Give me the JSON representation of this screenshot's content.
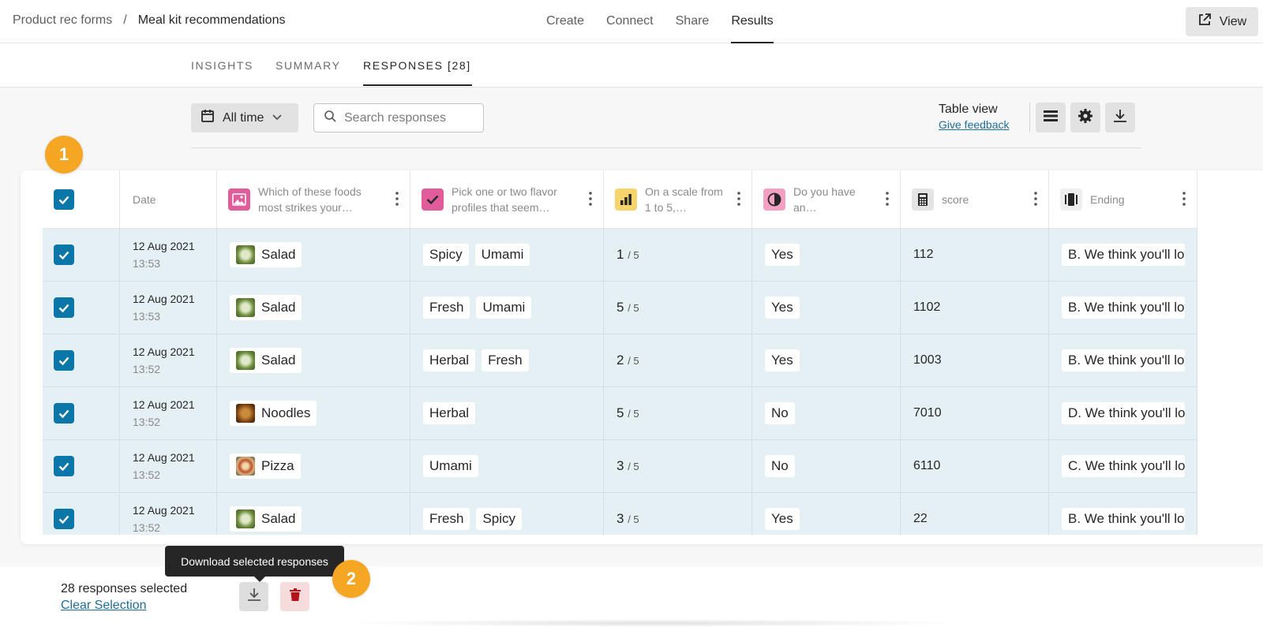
{
  "breadcrumb": {
    "parent": "Product rec forms",
    "separator": "/",
    "current": "Meal kit recommendations"
  },
  "topnav": [
    {
      "label": "Create",
      "active": false
    },
    {
      "label": "Connect",
      "active": false
    },
    {
      "label": "Share",
      "active": false
    },
    {
      "label": "Results",
      "active": true
    }
  ],
  "view_button": {
    "label": "View",
    "icon": "external-link-icon"
  },
  "subtabs": [
    {
      "label": "INSIGHTS",
      "active": false
    },
    {
      "label": "SUMMARY",
      "active": false
    },
    {
      "label": "RESPONSES [28]",
      "active": true
    }
  ],
  "toolbar": {
    "date_filter": "All time",
    "search_placeholder": "Search responses",
    "table_view_title": "Table view",
    "give_feedback": "Give feedback",
    "icons": [
      "rows-icon",
      "gear-icon",
      "download-icon"
    ]
  },
  "badges": [
    "1",
    "2"
  ],
  "table": {
    "headers": {
      "date": "Date",
      "q1": "Which of these foods most strikes your…",
      "q2": "Pick one or two flavor profiles that seem…",
      "q3": "On a scale from 1 to 5,…",
      "q4": "Do you have an…",
      "q5": "score",
      "q6": "Ending"
    },
    "header_colors": {
      "q1": "#e05c9a",
      "q2": "#e05c9a",
      "q3": "#f6d36b",
      "q4": "#f3a0c5",
      "q5": "#e4e4e4",
      "q6": "#e4e4e4"
    },
    "rows": [
      {
        "date": "12 Aug 2021",
        "time": "13:53",
        "food": "Salad",
        "flavors": [
          "Spicy",
          "Umami"
        ],
        "scale": "1",
        "scale_max": "/ 5",
        "yesno": "Yes",
        "score": "112",
        "ending": "B. We think you'll love"
      },
      {
        "date": "12 Aug 2021",
        "time": "13:53",
        "food": "Salad",
        "flavors": [
          "Fresh",
          "Umami"
        ],
        "scale": "5",
        "scale_max": "/ 5",
        "yesno": "Yes",
        "score": "1102",
        "ending": "B. We think you'll love"
      },
      {
        "date": "12 Aug 2021",
        "time": "13:52",
        "food": "Salad",
        "flavors": [
          "Herbal",
          "Fresh"
        ],
        "scale": "2",
        "scale_max": "/ 5",
        "yesno": "Yes",
        "score": "1003",
        "ending": "B. We think you'll love"
      },
      {
        "date": "12 Aug 2021",
        "time": "13:52",
        "food": "Noodles",
        "flavors": [
          "Herbal"
        ],
        "scale": "5",
        "scale_max": "/ 5",
        "yesno": "No",
        "score": "7010",
        "ending": "D. We think you'll love"
      },
      {
        "date": "12 Aug 2021",
        "time": "13:52",
        "food": "Pizza",
        "flavors": [
          "Umami"
        ],
        "scale": "3",
        "scale_max": "/ 5",
        "yesno": "No",
        "score": "6110",
        "ending": "C. We think you'll love"
      },
      {
        "date": "12 Aug 2021",
        "time": "13:52",
        "food": "Salad",
        "flavors": [
          "Fresh",
          "Spicy"
        ],
        "scale": "3",
        "scale_max": "/ 5",
        "yesno": "Yes",
        "score": "22",
        "ending": "B. We think you'll love"
      }
    ]
  },
  "selection": {
    "count_text": "28 responses selected",
    "clear_label": "Clear Selection",
    "tooltip": "Download selected responses"
  },
  "colors": {
    "accent": "#0b77a8",
    "badge": "#f5a623",
    "row_bg": "#e4f0f3"
  }
}
